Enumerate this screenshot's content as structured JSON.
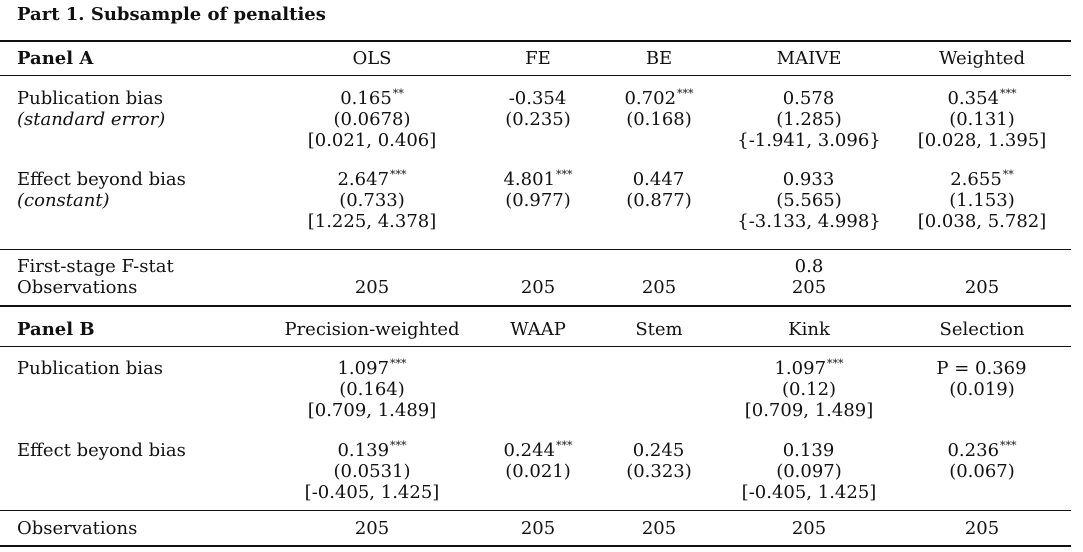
{
  "title": "Part 1.  Subsample of penalties",
  "panel_a": {
    "label": "Panel A",
    "columns": [
      "OLS",
      "FE",
      "BE",
      "MAIVE",
      "Weighted"
    ],
    "pub_bias": {
      "label": "Publication bias",
      "sublabel": "(standard error)",
      "estimates": [
        {
          "value": "0.165",
          "stars": "**",
          "se": "(0.0678)",
          "ci": "[0.021, 0.406]"
        },
        {
          "value": "-0.354",
          "stars": "",
          "se": "(0.235)",
          "ci": ""
        },
        {
          "value": "0.702",
          "stars": "***",
          "se": "(0.168)",
          "ci": ""
        },
        {
          "value": "0.578",
          "stars": "",
          "se": "(1.285)",
          "ci": "{-1.941, 3.096}"
        },
        {
          "value": "0.354",
          "stars": "***",
          "se": "(0.131)",
          "ci": "[0.028, 1.395]"
        }
      ]
    },
    "effect": {
      "label": "Effect beyond bias",
      "sublabel": "(constant)",
      "estimates": [
        {
          "value": "2.647",
          "stars": "***",
          "se": "(0.733)",
          "ci": "[1.225, 4.378]"
        },
        {
          "value": "4.801",
          "stars": "***",
          "se": "(0.977)",
          "ci": ""
        },
        {
          "value": "0.447",
          "stars": "",
          "se": "(0.877)",
          "ci": ""
        },
        {
          "value": "0.933",
          "stars": "",
          "se": "(5.565)",
          "ci": "{-3.133, 4.998}"
        },
        {
          "value": "2.655",
          "stars": "**",
          "se": "(1.153)",
          "ci": "[0.038, 5.782]"
        }
      ]
    },
    "fstat": {
      "label": "First-stage F-stat",
      "maive": "0.8"
    },
    "observations": {
      "label": "Observations",
      "values": [
        "205",
        "205",
        "205",
        "205",
        "205"
      ]
    }
  },
  "panel_b": {
    "label": "Panel B",
    "columns": [
      "Precision-weighted",
      "WAAP",
      "Stem",
      "Kink",
      "Selection"
    ],
    "pub_bias": {
      "label": "Publication bias",
      "estimates": [
        {
          "value": "1.097",
          "stars": "***",
          "se": "(0.164)",
          "ci": "[0.709, 1.489]"
        },
        {
          "value": "",
          "stars": "",
          "se": "",
          "ci": ""
        },
        {
          "value": "",
          "stars": "",
          "se": "",
          "ci": ""
        },
        {
          "value": "1.097",
          "stars": "***",
          "se": "(0.12)",
          "ci": "[0.709, 1.489]"
        },
        {
          "value": "P = 0.369",
          "stars": "",
          "se": "(0.019)",
          "ci": ""
        }
      ]
    },
    "effect": {
      "label": "Effect beyond bias",
      "estimates": [
        {
          "value": "0.139",
          "stars": "***",
          "se": "(0.0531)",
          "ci": "[-0.405, 1.425]"
        },
        {
          "value": "0.244",
          "stars": "***",
          "se": "(0.021)",
          "ci": ""
        },
        {
          "value": "0.245",
          "stars": "",
          "se": "(0.323)",
          "ci": ""
        },
        {
          "value": "0.139",
          "stars": "",
          "se": "(0.097)",
          "ci": "[-0.405, 1.425]"
        },
        {
          "value": "0.236",
          "stars": "***",
          "se": "(0.067)",
          "ci": ""
        }
      ]
    },
    "observations": {
      "label": "Observations",
      "values": [
        "205",
        "205",
        "205",
        "205",
        "205"
      ]
    }
  }
}
